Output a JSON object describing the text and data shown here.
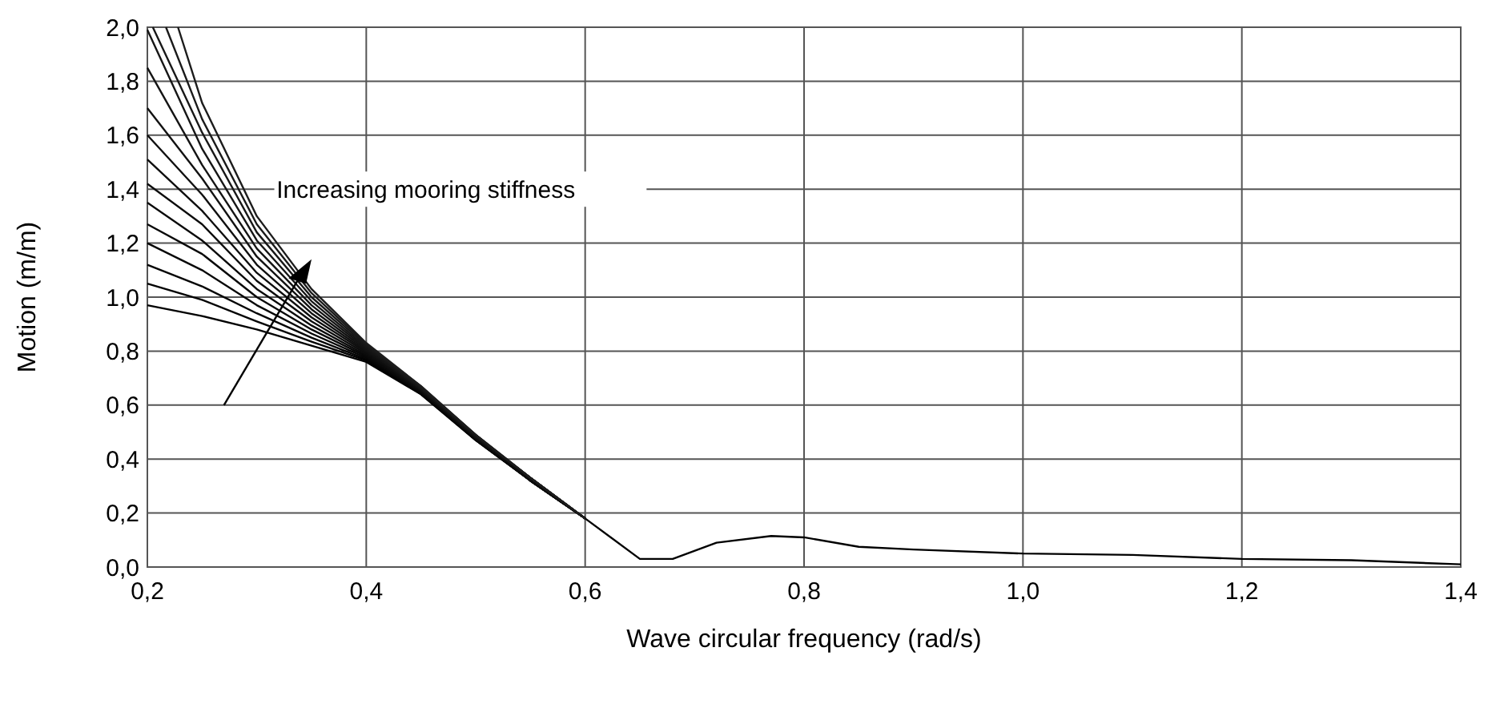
{
  "chart_data": {
    "type": "line",
    "xlabel": "Wave circular frequency (rad/s)",
    "ylabel": "Motion (m/m)",
    "x": [
      0.2,
      0.25,
      0.3,
      0.35,
      0.4,
      0.45,
      0.5,
      0.55,
      0.6
    ],
    "series": [
      {
        "color": "#000000",
        "x": [
          0.2,
          0.25,
          0.3,
          0.35,
          0.4,
          0.45,
          0.5,
          0.55,
          0.6,
          0.65,
          0.68,
          0.72,
          0.77,
          0.8,
          0.85,
          0.9,
          1.0,
          1.1,
          1.2,
          1.3,
          1.4
        ],
        "values": [
          0.97,
          0.93,
          0.88,
          0.82,
          0.76,
          0.64,
          0.47,
          0.32,
          0.18,
          0.03,
          0.03,
          0.09,
          0.115,
          0.11,
          0.075,
          0.065,
          0.05,
          0.045,
          0.03,
          0.025,
          0.01
        ]
      },
      {
        "color": "#020202",
        "values": [
          1.05,
          0.99,
          0.91,
          0.835,
          0.765,
          0.64,
          0.47,
          0.32,
          0.18
        ]
      },
      {
        "color": "#040404",
        "values": [
          1.12,
          1.04,
          0.94,
          0.85,
          0.77,
          0.645,
          0.47,
          0.32,
          0.18
        ]
      },
      {
        "color": "#060606",
        "values": [
          1.2,
          1.1,
          0.97,
          0.865,
          0.775,
          0.645,
          0.475,
          0.32,
          0.18
        ]
      },
      {
        "color": "#080808",
        "values": [
          1.27,
          1.16,
          1.0,
          0.88,
          0.78,
          0.65,
          0.475,
          0.32,
          0.18
        ]
      },
      {
        "color": "#0a0a0a",
        "values": [
          1.35,
          1.21,
          1.03,
          0.895,
          0.785,
          0.65,
          0.475,
          0.32,
          0.18
        ]
      },
      {
        "color": "#0c0c0c",
        "values": [
          1.42,
          1.27,
          1.06,
          0.91,
          0.79,
          0.655,
          0.48,
          0.32,
          0.18
        ]
      },
      {
        "color": "#0e0e0e",
        "values": [
          1.51,
          1.32,
          1.09,
          0.925,
          0.795,
          0.655,
          0.48,
          0.33,
          0.18
        ]
      },
      {
        "color": "#101010",
        "values": [
          1.6,
          1.38,
          1.12,
          0.94,
          0.8,
          0.66,
          0.48,
          0.33,
          0.18
        ]
      },
      {
        "color": "#121212",
        "values": [
          1.7,
          1.44,
          1.15,
          0.955,
          0.805,
          0.66,
          0.485,
          0.33,
          0.18
        ]
      },
      {
        "color": "#141414",
        "values": [
          1.85,
          1.49,
          1.18,
          0.97,
          0.81,
          0.66,
          0.485,
          0.33,
          0.18
        ]
      },
      {
        "color": "#161616",
        "values": [
          1.99,
          1.55,
          1.21,
          0.985,
          0.815,
          0.665,
          0.485,
          0.33,
          0.18
        ]
      },
      {
        "color": "#181818",
        "x": [
          0.205,
          0.25,
          0.3,
          0.35,
          0.4,
          0.45,
          0.5,
          0.55,
          0.6
        ],
        "values": [
          2.0,
          1.61,
          1.24,
          1.0,
          0.82,
          0.665,
          0.49,
          0.33,
          0.18
        ]
      },
      {
        "color": "#1a1a1a",
        "x": [
          0.217,
          0.25,
          0.3,
          0.35,
          0.4,
          0.45,
          0.5,
          0.55,
          0.6
        ],
        "values": [
          2.0,
          1.66,
          1.27,
          1.015,
          0.825,
          0.67,
          0.49,
          0.33,
          0.18
        ]
      },
      {
        "color": "#1c1c1c",
        "x": [
          0.228,
          0.25,
          0.3,
          0.35,
          0.4,
          0.45,
          0.5,
          0.55,
          0.6
        ],
        "values": [
          2.0,
          1.72,
          1.3,
          1.03,
          0.83,
          0.67,
          0.49,
          0.33,
          0.18
        ]
      }
    ],
    "xlim": [
      0.2,
      1.4
    ],
    "xticks": [
      {
        "value": 0.2,
        "label": "0,2"
      },
      {
        "value": 0.4,
        "label": "0,4"
      },
      {
        "value": 0.6,
        "label": "0,6"
      },
      {
        "value": 0.8,
        "label": "0,8"
      },
      {
        "value": 1.0,
        "label": "1,0"
      },
      {
        "value": 1.2,
        "label": "1,2"
      },
      {
        "value": 1.4,
        "label": "1,4"
      }
    ],
    "ylim": [
      0,
      2.0
    ],
    "yticks": [
      {
        "value": 0,
        "label": "0,0"
      },
      {
        "value": 0.2,
        "label": "0,2"
      },
      {
        "value": 0.4,
        "label": "0,4"
      },
      {
        "value": 0.6,
        "label": "0,6"
      },
      {
        "value": 0.8,
        "label": "0,8"
      },
      {
        "value": 1.0,
        "label": "1,0"
      },
      {
        "value": 1.2,
        "label": "1,2"
      },
      {
        "value": 1.4,
        "label": "1,4"
      },
      {
        "value": 1.6,
        "label": "1,6"
      },
      {
        "value": 1.8,
        "label": "1,8"
      },
      {
        "value": 2.0,
        "label": "2,0"
      }
    ],
    "grid": true,
    "marker": "none",
    "line_style": "solid",
    "annotations": [
      "Increasing mooring stiffness"
    ]
  }
}
